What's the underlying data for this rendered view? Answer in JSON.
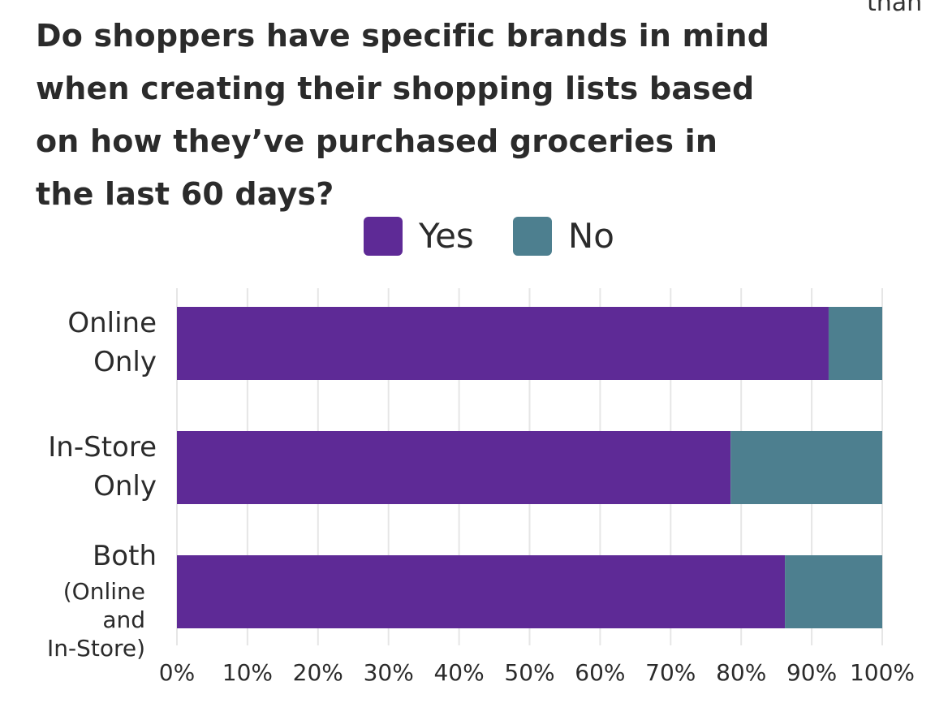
{
  "corner_text": "than",
  "chart_data": {
    "type": "bar",
    "orientation": "horizontal",
    "stacked": true,
    "title": "Do shoppers have specific brands in mind when creating their shopping lists based on how they’ve purchased groceries in the last 60 days?",
    "categories": [
      {
        "lines": [
          "Online",
          "Only"
        ],
        "small_lines": []
      },
      {
        "lines": [
          "In-Store",
          "Only"
        ],
        "small_lines": []
      },
      {
        "lines": [
          "Both"
        ],
        "small_lines": [
          "(Online",
          "and",
          "In-Store)"
        ]
      }
    ],
    "series": [
      {
        "name": "Yes",
        "color": "#5e2a96",
        "values": [
          92.4,
          78.5,
          86.2
        ]
      },
      {
        "name": "No",
        "color": "#4d7f8f",
        "values": [
          7.6,
          21.5,
          13.8
        ]
      }
    ],
    "xlim": [
      0,
      100
    ],
    "xticks": [
      "0%",
      "10%",
      "20%",
      "30%",
      "40%",
      "50%",
      "60%",
      "70%",
      "80%",
      "90%",
      "100%"
    ],
    "grid": true,
    "legend_position": "top-center"
  }
}
